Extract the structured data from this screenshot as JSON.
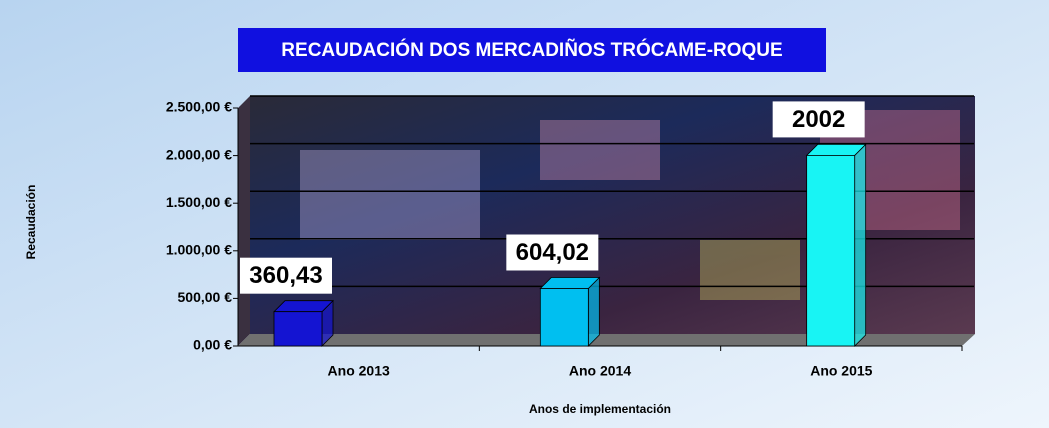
{
  "chart_data": {
    "type": "bar3d",
    "title": "RECAUDACIÓN DOS MERCADIÑOS TRÓCAME-ROQUE",
    "y_label": "Recaudación",
    "x_label": "Anos de implementación",
    "categories": [
      "Ano 2013",
      "Ano 2014",
      "Ano 2015"
    ],
    "values": [
      360.43,
      604.02,
      2002
    ],
    "value_labels": [
      "360,43",
      "604,02",
      "2002"
    ],
    "colors": [
      "#1414d2",
      "#00bff0",
      "#18f4f4"
    ],
    "ylim": [
      0,
      2500
    ],
    "yticks": [
      {
        "value": 0,
        "label": "0,00 €"
      },
      {
        "value": 500,
        "label": "500,00 €"
      },
      {
        "value": 1000,
        "label": "1.000,00 €"
      },
      {
        "value": 1500,
        "label": "1.500,00 €"
      },
      {
        "value": 2000,
        "label": "2.000,00 €"
      },
      {
        "value": 2500,
        "label": "2.500,00 €"
      }
    ],
    "grid": true
  }
}
